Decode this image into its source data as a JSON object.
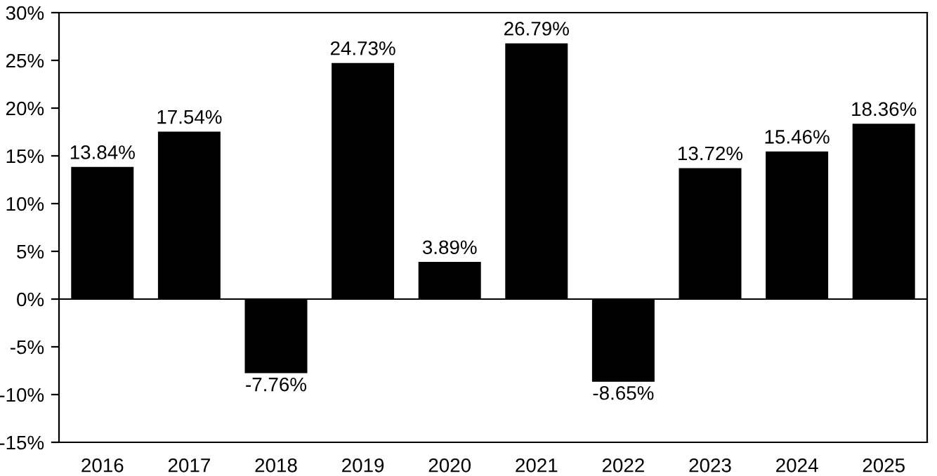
{
  "chart_data": {
    "type": "bar",
    "categories": [
      "2016",
      "2017",
      "2018",
      "2019",
      "2020",
      "2021",
      "2022",
      "2023",
      "2024",
      "2025"
    ],
    "values": [
      13.84,
      17.54,
      -7.76,
      24.73,
      3.89,
      26.79,
      -8.65,
      13.72,
      15.46,
      18.36
    ],
    "value_labels": [
      "13.84%",
      "17.54%",
      "-7.76%",
      "24.73%",
      "3.89%",
      "26.79%",
      "-8.65%",
      "13.72%",
      "15.46%",
      "18.36%"
    ],
    "color": "#000000",
    "ylim": [
      -15,
      30
    ],
    "yticks": [
      {
        "value": -15,
        "label": "-15%"
      },
      {
        "value": -10,
        "label": "-10%"
      },
      {
        "value": -5,
        "label": "-5%"
      },
      {
        "value": 0,
        "label": "0%"
      },
      {
        "value": 5,
        "label": "5%"
      },
      {
        "value": 10,
        "label": "10%"
      },
      {
        "value": 15,
        "label": "15%"
      },
      {
        "value": 20,
        "label": "20%"
      },
      {
        "value": 25,
        "label": "25%"
      },
      {
        "value": 30,
        "label": "30%"
      }
    ],
    "ref_lines": [
      {
        "axis": "y",
        "value": 0,
        "color": "#000000"
      }
    ],
    "legend": false
  }
}
